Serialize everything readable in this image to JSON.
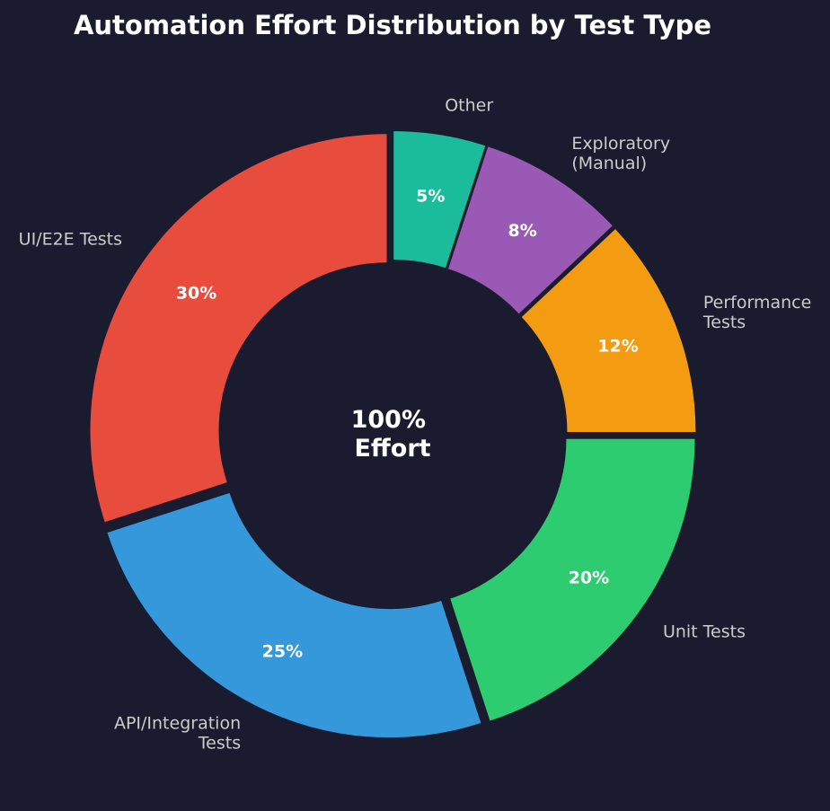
{
  "chart_data": {
    "type": "pie",
    "variant": "donut",
    "title": "Automation Effort Distribution by Test Type",
    "center_label": [
      "100%",
      "Effort"
    ],
    "start_angle_deg": 90,
    "direction": "clockwise",
    "slices": [
      {
        "label": "Other",
        "value": 5,
        "pct_label": "5%",
        "color": "#1abc9c"
      },
      {
        "label": "Exploratory (Manual)",
        "label_lines": [
          "Exploratory",
          "(Manual)"
        ],
        "value": 8,
        "pct_label": "8%",
        "color": "#9b59b6"
      },
      {
        "label": "Performance Tests",
        "label_lines": [
          "Performance",
          "Tests"
        ],
        "value": 12,
        "pct_label": "12%",
        "color": "#f39c12"
      },
      {
        "label": "Unit Tests",
        "value": 20,
        "pct_label": "20%",
        "color": "#2ecc71"
      },
      {
        "label": "API/Integration Tests",
        "label_lines": [
          "API/Integration",
          "Tests"
        ],
        "value": 25,
        "pct_label": "25%",
        "color": "#3498db"
      },
      {
        "label": "UI/E2E Tests",
        "value": 30,
        "pct_label": "30%",
        "color": "#e74c3c"
      }
    ],
    "legend": "none"
  },
  "colors": {
    "background": "#1a1b2e",
    "label_text": "#cccccc",
    "title_text": "#ffffff"
  }
}
